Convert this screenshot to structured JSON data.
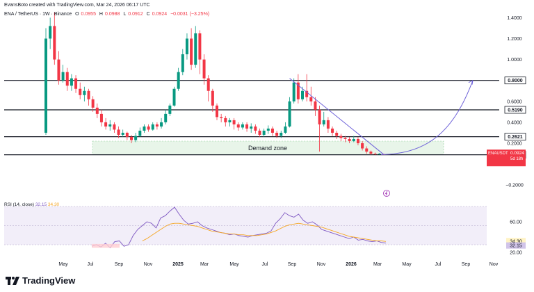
{
  "header": {
    "created": "EvansBoto created with TradingView.com, Mar 24, 2026 06:17 UTC",
    "symbol": "ENA / TetherUS · 1W · Binance",
    "o_label": "O",
    "o_val": "0.0955",
    "h_label": "H",
    "h_val": "0.0988",
    "l_label": "L",
    "l_val": "0.0912",
    "c_label": "C",
    "c_val": "0.0924",
    "change": "−0.0031 (−3.25%)"
  },
  "rsi": {
    "label": "RSI (14, close)",
    "value": "32.15",
    "ma": "34.30"
  },
  "logo": "TradingView",
  "colors": {
    "up": "#089981",
    "down": "#f23645",
    "rsi": "#7e57c2",
    "rsi_ma": "#f5a623",
    "zone": "#e8f5e9",
    "arc": "#6f63d9"
  },
  "chart_data": {
    "type": "candlestick",
    "price_axis_ticks": [
      "1.4000",
      "1.2000",
      "1.0000",
      "0.6000",
      "0.4000",
      "0.2000",
      "−0.2000"
    ],
    "x_ticks": [
      "May",
      "Jul",
      "Sep",
      "Nov",
      "2025",
      "Mar",
      "May",
      "Jul",
      "Sep",
      "Nov",
      "2026",
      "Mar",
      "May",
      "Jul",
      "Sep",
      "Nov"
    ],
    "levels": [
      {
        "label": "0.8000",
        "value": 0.8
      },
      {
        "label": "0.5190",
        "value": 0.519
      },
      {
        "label": "0.2621",
        "value": 0.2621
      },
      {
        "label": "0.0896",
        "value": 0.0896
      }
    ],
    "current": {
      "symbol": "ENAUSDT",
      "value": "0.0924",
      "countdown": "5d 18h"
    },
    "demand_zone": {
      "label": "Demand zone",
      "low": 0.0896,
      "high": 0.22
    },
    "candles": [
      [
        0.3,
        1.2,
        1.3,
        0.28
      ],
      [
        1.2,
        1.32,
        1.4,
        1.1
      ],
      [
        1.32,
        1.0,
        1.45,
        0.95
      ],
      [
        1.0,
        0.8,
        1.08,
        0.76
      ],
      [
        0.8,
        0.88,
        0.95,
        0.78
      ],
      [
        0.88,
        0.75,
        0.92,
        0.7
      ],
      [
        0.75,
        0.82,
        0.86,
        0.7
      ],
      [
        0.82,
        0.72,
        0.85,
        0.68
      ],
      [
        0.72,
        0.66,
        0.78,
        0.62
      ],
      [
        0.66,
        0.7,
        0.74,
        0.6
      ],
      [
        0.7,
        0.62,
        0.72,
        0.56
      ],
      [
        0.62,
        0.54,
        0.65,
        0.5
      ],
      [
        0.54,
        0.48,
        0.58,
        0.44
      ],
      [
        0.48,
        0.4,
        0.52,
        0.36
      ],
      [
        0.4,
        0.36,
        0.44,
        0.33
      ],
      [
        0.36,
        0.38,
        0.42,
        0.32
      ],
      [
        0.38,
        0.33,
        0.4,
        0.3
      ],
      [
        0.33,
        0.28,
        0.36,
        0.25
      ],
      [
        0.28,
        0.3,
        0.33,
        0.26
      ],
      [
        0.3,
        0.26,
        0.31,
        0.23
      ],
      [
        0.26,
        0.23,
        0.28,
        0.2
      ],
      [
        0.23,
        0.27,
        0.3,
        0.21
      ],
      [
        0.27,
        0.32,
        0.35,
        0.26
      ],
      [
        0.32,
        0.36,
        0.38,
        0.3
      ],
      [
        0.36,
        0.33,
        0.38,
        0.31
      ],
      [
        0.33,
        0.38,
        0.4,
        0.32
      ],
      [
        0.38,
        0.36,
        0.4,
        0.33
      ],
      [
        0.36,
        0.4,
        0.44,
        0.34
      ],
      [
        0.4,
        0.48,
        0.52,
        0.38
      ],
      [
        0.48,
        0.56,
        0.58,
        0.46
      ],
      [
        0.56,
        0.72,
        0.74,
        0.55
      ],
      [
        0.72,
        0.88,
        0.92,
        0.7
      ],
      [
        0.88,
        1.05,
        1.1,
        0.85
      ],
      [
        1.05,
        1.2,
        1.25,
        1.0
      ],
      [
        1.2,
        0.95,
        1.3,
        0.9
      ],
      [
        0.95,
        1.25,
        1.32,
        0.92
      ],
      [
        1.25,
        1.0,
        1.28,
        0.86
      ],
      [
        1.0,
        0.82,
        1.05,
        0.76
      ],
      [
        0.82,
        0.7,
        0.85,
        0.6
      ],
      [
        0.7,
        0.56,
        0.72,
        0.5
      ],
      [
        0.56,
        0.45,
        0.58,
        0.42
      ],
      [
        0.45,
        0.44,
        0.48,
        0.4
      ],
      [
        0.44,
        0.4,
        0.46,
        0.36
      ],
      [
        0.4,
        0.42,
        0.44,
        0.36
      ],
      [
        0.42,
        0.38,
        0.44,
        0.33
      ],
      [
        0.38,
        0.35,
        0.4,
        0.32
      ],
      [
        0.35,
        0.38,
        0.4,
        0.33
      ],
      [
        0.38,
        0.34,
        0.4,
        0.31
      ],
      [
        0.34,
        0.36,
        0.39,
        0.3
      ],
      [
        0.36,
        0.32,
        0.38,
        0.29
      ],
      [
        0.32,
        0.28,
        0.34,
        0.26
      ],
      [
        0.28,
        0.32,
        0.34,
        0.26
      ],
      [
        0.32,
        0.34,
        0.37,
        0.29
      ],
      [
        0.34,
        0.3,
        0.36,
        0.27
      ],
      [
        0.3,
        0.27,
        0.32,
        0.25
      ],
      [
        0.27,
        0.3,
        0.32,
        0.25
      ],
      [
        0.3,
        0.36,
        0.4,
        0.29
      ],
      [
        0.36,
        0.6,
        0.64,
        0.35
      ],
      [
        0.6,
        0.78,
        0.82,
        0.58
      ],
      [
        0.78,
        0.62,
        0.86,
        0.58
      ],
      [
        0.62,
        0.7,
        0.74,
        0.6
      ],
      [
        0.7,
        0.64,
        0.86,
        0.6
      ],
      [
        0.64,
        0.6,
        0.74,
        0.56
      ],
      [
        0.6,
        0.52,
        0.64,
        0.46
      ],
      [
        0.52,
        0.38,
        0.56,
        0.12
      ],
      [
        0.38,
        0.42,
        0.5,
        0.36
      ],
      [
        0.42,
        0.34,
        0.45,
        0.3
      ],
      [
        0.34,
        0.3,
        0.36,
        0.27
      ],
      [
        0.3,
        0.27,
        0.32,
        0.24
      ],
      [
        0.27,
        0.25,
        0.29,
        0.22
      ],
      [
        0.25,
        0.24,
        0.27,
        0.21
      ],
      [
        0.24,
        0.22,
        0.26,
        0.2
      ],
      [
        0.22,
        0.24,
        0.27,
        0.21
      ],
      [
        0.24,
        0.2,
        0.26,
        0.18
      ],
      [
        0.2,
        0.15,
        0.22,
        0.13
      ],
      [
        0.15,
        0.12,
        0.17,
        0.1
      ],
      [
        0.12,
        0.1,
        0.13,
        0.09
      ],
      [
        0.1,
        0.095,
        0.11,
        0.088
      ],
      [
        0.095,
        0.1,
        0.105,
        0.09
      ],
      [
        0.0955,
        0.0924,
        0.0988,
        0.0912
      ]
    ],
    "rsi_series": [
      28,
      30,
      27,
      32,
      26,
      34,
      35,
      28,
      30,
      42,
      50,
      55,
      60,
      58,
      52,
      65,
      68,
      74,
      79,
      70,
      62,
      57,
      58,
      60,
      55,
      52,
      50,
      48,
      46,
      45,
      43,
      44,
      42,
      41,
      40,
      42,
      43,
      44,
      45,
      48,
      58,
      64,
      72,
      68,
      66,
      70,
      62,
      58,
      60,
      56,
      50,
      48,
      46,
      44,
      42,
      40,
      38,
      40,
      36,
      37,
      35,
      34,
      35,
      33,
      32.15
    ],
    "rsi_ma_series": [
      null,
      null,
      null,
      null,
      null,
      null,
      null,
      null,
      null,
      null,
      null,
      35,
      38,
      42,
      46,
      50,
      54,
      57,
      58,
      58,
      57,
      56,
      55,
      54,
      52,
      50,
      48,
      47,
      46,
      45,
      44,
      44,
      43,
      43,
      42,
      42,
      42,
      43,
      44,
      46,
      48,
      51,
      54,
      56,
      57,
      58,
      57,
      56,
      55,
      54,
      53,
      51,
      49,
      47,
      45,
      43,
      41,
      40,
      39,
      38,
      37,
      36,
      35,
      35,
      34.3
    ],
    "rsi_axis_ticks": [
      "60.00",
      "20.00"
    ]
  }
}
